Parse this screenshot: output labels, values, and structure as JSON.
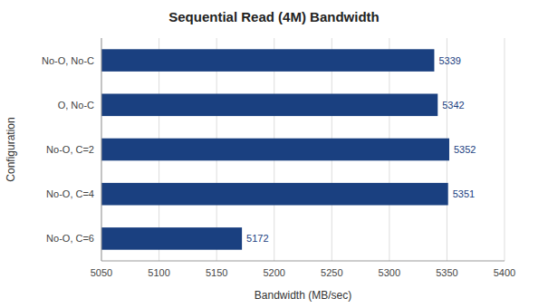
{
  "chart_data": {
    "type": "bar",
    "orientation": "horizontal",
    "title": "Sequential Read (4M) Bandwidth",
    "categories": [
      "No-O, No-C",
      "O, No-C",
      "No-O, C=2",
      "No-O, C=4",
      "No-O, C=6"
    ],
    "values": [
      5339,
      5342,
      5352,
      5351,
      5172
    ],
    "color": "#1a4080",
    "xlabel": "Bandwidth (MB/sec)",
    "ylabel": "Configuration",
    "xlim": [
      5050,
      5400
    ],
    "xticks": [
      5050,
      5100,
      5150,
      5200,
      5250,
      5300,
      5350,
      5400
    ],
    "grid": true,
    "data_labels": true
  }
}
